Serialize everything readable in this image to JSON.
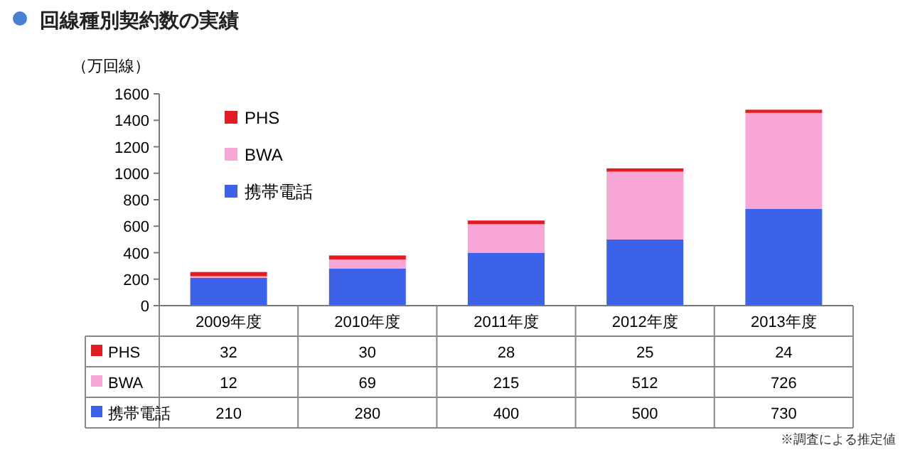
{
  "chart_data": {
    "type": "bar",
    "title": "回線種別契約数の実績",
    "ylabel": "（万回線）",
    "categories": [
      "2009年度",
      "2010年度",
      "2011年度",
      "2012年度",
      "2013年度"
    ],
    "stacked": true,
    "series": [
      {
        "name": "携帯電話",
        "color": "#3b62e8",
        "values": [
          210,
          280,
          400,
          500,
          730
        ]
      },
      {
        "name": "BWA",
        "color": "#f8a6d6",
        "values": [
          12,
          69,
          215,
          512,
          726
        ]
      },
      {
        "name": "PHS",
        "color": "#e31b23",
        "values": [
          32,
          30,
          28,
          25,
          24
        ]
      }
    ],
    "ylim": [
      0,
      1600
    ],
    "yticks": [
      0,
      200,
      400,
      600,
      800,
      1000,
      1200,
      1400,
      1600
    ],
    "data_labels": true,
    "legend": "top left",
    "grid": false,
    "annotations": [
      "※調査による推定値"
    ]
  }
}
